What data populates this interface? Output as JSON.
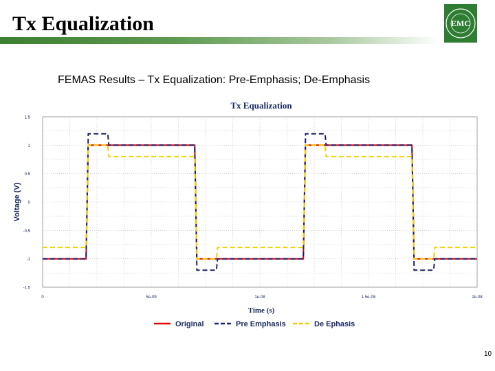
{
  "slide": {
    "title": "Tx Equalization",
    "subtitle": "FEMAS Results – Tx Equalization: Pre-Emphasis; De-Emphasis",
    "page_number": "10",
    "logo_text": "EMC",
    "colors": {
      "title_bar": "#3d7f32",
      "logo_green": "#2e7d32"
    }
  },
  "chart_data": {
    "type": "line",
    "title": "Tx Equalization",
    "xlabel": "Time (s)",
    "ylabel": "Voltage (V)",
    "xlim": [
      0,
      2e-08
    ],
    "ylim": [
      -1.5,
      1.5
    ],
    "grid": true,
    "legend_position": "bottom",
    "x_ticks": [
      0,
      5e-09,
      1e-08,
      1.5e-08,
      2e-08
    ],
    "x_tick_labels": [
      "0",
      "5e-09",
      "1e-08",
      "1.5e-08",
      "2e-08"
    ],
    "y_ticks": [
      1.5,
      1,
      0.5,
      0,
      -0.5,
      -1,
      -1.5
    ],
    "y_tick_labels": [
      "1.5",
      "1",
      "0.5",
      "0",
      "-0.5",
      "-1",
      "-1.5"
    ],
    "series": [
      {
        "name": "Original",
        "color": "#e00000",
        "dash": "solid",
        "x": [
          0,
          2e-09,
          2.1e-09,
          7e-09,
          7.1e-09,
          1.2e-08,
          1.21e-08,
          1.7e-08,
          1.71e-08,
          2e-08
        ],
        "y": [
          -1,
          -1,
          1,
          1,
          -1,
          -1,
          1,
          1,
          -1,
          -1
        ]
      },
      {
        "name": "Pre Emphasis",
        "color": "#1a1f6e",
        "dash": "dashed",
        "x": [
          0,
          2e-09,
          2.1e-09,
          3e-09,
          3.05e-09,
          7e-09,
          7.1e-09,
          8e-09,
          8.05e-09,
          1.2e-08,
          1.21e-08,
          1.3e-08,
          1.305e-08,
          1.7e-08,
          1.71e-08,
          1.8e-08,
          1.805e-08,
          2e-08
        ],
        "y": [
          -1,
          -1,
          1.2,
          1.2,
          1,
          1,
          -1.2,
          -1.2,
          -1,
          -1,
          1.2,
          1.2,
          1,
          1,
          -1.2,
          -1.2,
          -1,
          -1
        ]
      },
      {
        "name": "De Ephasis",
        "color": "#f2d000",
        "dash": "dashed",
        "x": [
          0,
          2e-09,
          2.1e-09,
          3e-09,
          3.05e-09,
          7e-09,
          7.1e-09,
          8e-09,
          8.05e-09,
          1.2e-08,
          1.21e-08,
          1.3e-08,
          1.305e-08,
          1.7e-08,
          1.71e-08,
          1.8e-08,
          1.805e-08,
          2e-08
        ],
        "y": [
          -0.8,
          -0.8,
          1,
          1,
          0.8,
          0.8,
          -1,
          -1,
          -0.8,
          -0.8,
          1,
          1,
          0.8,
          0.8,
          -1,
          -1,
          -0.8,
          -0.8
        ]
      }
    ]
  }
}
